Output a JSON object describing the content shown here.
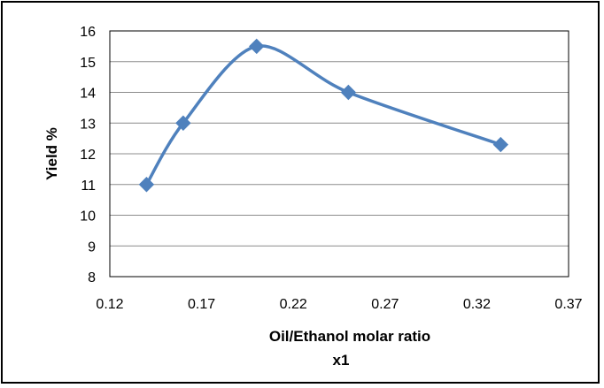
{
  "chart_data": {
    "type": "scatter",
    "subtype": "scatter with smooth lines and markers",
    "title": "",
    "xlabel": "Oil/Ethanol molar ratio",
    "xlabel_line2": "x1",
    "ylabel": "Yield %",
    "xlim": [
      0.12,
      0.37
    ],
    "ylim": [
      8,
      16
    ],
    "x_ticks": [
      "0.12",
      "0.17",
      "0.22",
      "0.27",
      "0.32",
      "0.37"
    ],
    "y_ticks": [
      "8",
      "9",
      "10",
      "11",
      "12",
      "13",
      "14",
      "15",
      "16"
    ],
    "grid": "horizontal major gridlines",
    "legend": "none",
    "series": [
      {
        "x": [
          0.14,
          0.16,
          0.2,
          0.25,
          0.333
        ],
        "y": [
          11.0,
          13.0,
          15.5,
          14.0,
          12.3
        ],
        "color": "#4f81bd",
        "marker": "diamond"
      }
    ]
  }
}
